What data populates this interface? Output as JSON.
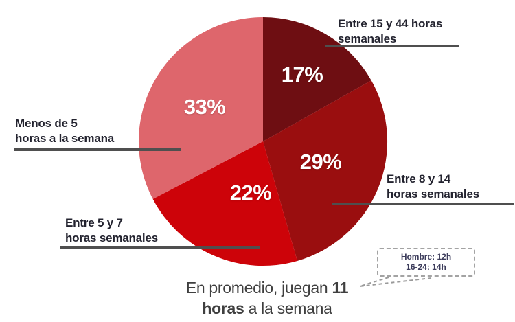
{
  "chart_data": {
    "type": "pie",
    "title": "",
    "start_angle_deg": 0,
    "direction": "clockwise",
    "unit": "%",
    "slices": [
      {
        "label": "Entre 15 y 44 horas semanales",
        "display_label": "Entre 15 y 44 horas\nsemanales",
        "value": 17,
        "pct_label": "17%",
        "color": "#6e0e12"
      },
      {
        "label": "Entre 8 y 14 horas semanales",
        "display_label": "Entre 8 y 14\nhoras semanales",
        "value": 29,
        "pct_label": "29%",
        "color": "#9a0e0f"
      },
      {
        "label": "Entre 5 y 7 horas semanales",
        "display_label": "Entre 5 y 7\nhoras semanales",
        "value": 22,
        "pct_label": "22%",
        "color": "#cd0309"
      },
      {
        "label": "Menos de 5 horas a la semana",
        "display_label": "Menos de 5\nhoras a la semana",
        "value": 33,
        "pct_label": "33%",
        "color": "#de666c"
      }
    ],
    "caption": {
      "line1_regular": "En promedio, juegan ",
      "line1_bold": "11",
      "line2_bold": "horas",
      "line2_regular": " a la semana"
    },
    "annotation": {
      "line1": "Hombre: 12h",
      "line2": "16-24: 14h"
    }
  },
  "colors": {
    "leader_line": "#4f4f4f",
    "label_text": "#23232f",
    "caption_text": "#3f3f3f",
    "pct_text": "#ffffff",
    "annotation_border": "#a3a3a3",
    "annotation_text": "#3d3d5c"
  }
}
